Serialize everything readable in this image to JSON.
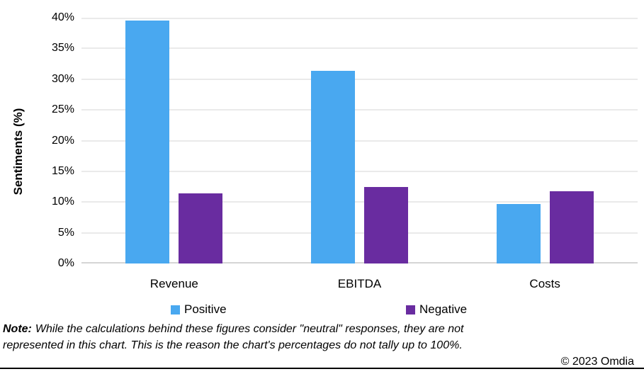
{
  "chart_data": {
    "type": "bar",
    "ylabel": "Sentiments (%)",
    "categories": [
      "Revenue",
      "EBITDA",
      "Costs"
    ],
    "series": [
      {
        "name": "Positive",
        "color": "#49A8F0",
        "values": [
          39.5,
          31.4,
          9.7
        ]
      },
      {
        "name": "Negative",
        "color": "#692CA0",
        "values": [
          11.4,
          12.4,
          11.8
        ]
      }
    ],
    "ylim": [
      0,
      40
    ],
    "ytick_step": 5,
    "ytick_labels": [
      "0%",
      "5%",
      "10%",
      "15%",
      "20%",
      "25%",
      "30%",
      "35%",
      "40%"
    ],
    "grid": true,
    "legend_position": "bottom"
  },
  "colors": {
    "positive": "#49A8F0",
    "negative": "#692CA0",
    "gridline": "#EAEAEA",
    "baseline": "#D5D5D5",
    "text": "#000000"
  },
  "footnote": {
    "prefix": "Note:",
    "line1": "While the calculations behind these figures consider \"neutral\" responses, they are not",
    "line2": "represented in this chart. This is the reason the chart's percentages do not tally up to 100%."
  },
  "copyright": "© 2023 Omdia"
}
